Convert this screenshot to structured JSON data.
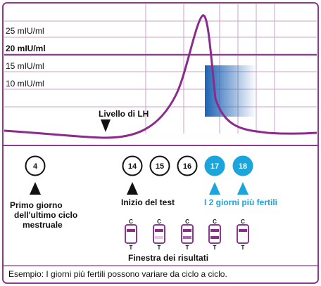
{
  "chart_data": {
    "type": "line",
    "ylim": [
      0,
      30
    ],
    "y_ticks": [
      {
        "value": 25,
        "label": "25 mIU/ml"
      },
      {
        "value": 20,
        "label": "20 mIU/ml"
      },
      {
        "value": 15,
        "label": "15 mIU/ml"
      },
      {
        "value": 10,
        "label": "10 mIU/ml"
      }
    ],
    "annotation": "Livello di LH"
  },
  "days": {
    "start": {
      "value": "4",
      "caption": "Primo giorno\ndell'ultimo ciclo\nmestruale"
    },
    "test": [
      {
        "value": "14",
        "caption": "Inizio del test"
      },
      {
        "value": "15"
      },
      {
        "value": "16"
      }
    ],
    "fertile": [
      {
        "value": "17"
      },
      {
        "value": "18"
      }
    ],
    "fertile_caption": "I 2 giorni più fertili"
  },
  "results": {
    "label_c": "C",
    "label_t": "T",
    "caption": "Finestra dei risultati",
    "strips": [
      {
        "t_level": "absent"
      },
      {
        "t_level": "faint"
      },
      {
        "t_level": "medium"
      },
      {
        "t_level": "strong"
      },
      {
        "t_level": "absent"
      }
    ]
  },
  "footer": "Esempio: I giorni più fertili possono variare da ciclo a ciclo.",
  "colors": {
    "frame": "#8b3a8f",
    "curve": "#8b2b8c",
    "grid": "#c9a3cb",
    "fertile": "#1aa5dc",
    "shade": "#1d63b3"
  }
}
